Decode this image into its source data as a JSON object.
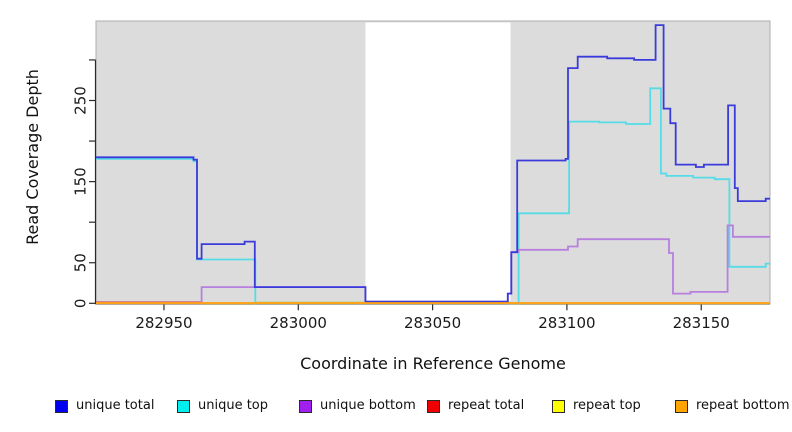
{
  "figure": {
    "x_axis_title": "Coordinate in Reference Genome",
    "y_axis_title": "Read Coverage Depth"
  },
  "chart_data": {
    "type": "line",
    "style": "step-after",
    "title": "",
    "xlabel": "Coordinate in Reference Genome",
    "ylabel": "Read Coverage Depth",
    "xlim": [
      282924.7,
      283175.6
    ],
    "ylim": [
      0,
      348
    ],
    "grid": false,
    "legend_position": "bottom",
    "plot_background_color": "#DCDCDC",
    "axis_color": "#2b2b2b",
    "tick_label_color": "#1a1a1a",
    "gap_region": {
      "x0": 283025,
      "x1": 283079,
      "color": "#FFFFFF"
    },
    "x_ticks": [
      {
        "v": 282950,
        "label": "282950"
      },
      {
        "v": 283000,
        "label": "283000"
      },
      {
        "v": 283050,
        "label": "283050"
      },
      {
        "v": 283100,
        "label": "283100"
      },
      {
        "v": 283150,
        "label": "283150"
      }
    ],
    "y_ticks": [
      {
        "v": 0,
        "label": "0"
      },
      {
        "v": 50,
        "label": "50"
      },
      {
        "v": 100,
        "label": ""
      },
      {
        "v": 150,
        "label": "150"
      },
      {
        "v": 200,
        "label": ""
      },
      {
        "v": 250,
        "label": "250"
      },
      {
        "v": 300,
        "label": ""
      }
    ],
    "draw_order": [
      "repeat_total",
      "unique_top",
      "repeat_top",
      "unique_bottom",
      "unique_total",
      "repeat_bottom"
    ],
    "series": [
      {
        "key": "unique_total",
        "label": "unique total",
        "legend_color": "#0000EE",
        "line_color": "#3B3BDC",
        "width": 1.8,
        "points": [
          [
            282924.7,
            180
          ],
          [
            282961,
            177
          ],
          [
            282962.3,
            55
          ],
          [
            282964,
            73
          ],
          [
            282980,
            76
          ],
          [
            282983.8,
            20
          ],
          [
            283025,
            2
          ],
          [
            283078,
            12
          ],
          [
            283079.3,
            63
          ],
          [
            283081.5,
            176
          ],
          [
            283099.5,
            178
          ],
          [
            283100.4,
            290
          ],
          [
            283104,
            304
          ],
          [
            283115,
            302
          ],
          [
            283125,
            300
          ],
          [
            283133,
            343
          ],
          [
            283136,
            240
          ],
          [
            283138.5,
            222
          ],
          [
            283140.5,
            171
          ],
          [
            283148,
            168
          ],
          [
            283151,
            171
          ],
          [
            283160,
            244
          ],
          [
            283162.5,
            142
          ],
          [
            283163.6,
            126
          ],
          [
            283174,
            129
          ]
        ]
      },
      {
        "key": "unique_top",
        "label": "unique top",
        "legend_color": "#00EEEE",
        "line_color": "#55DCE6",
        "width": 1.8,
        "points": [
          [
            282924.7,
            178
          ],
          [
            282961,
            175
          ],
          [
            282962.3,
            54
          ],
          [
            282984,
            0
          ],
          [
            283082,
            111
          ],
          [
            283100.8,
            224
          ],
          [
            283112,
            223
          ],
          [
            283122,
            221
          ],
          [
            283131,
            265
          ],
          [
            283135,
            160
          ],
          [
            283137,
            157
          ],
          [
            283147,
            155
          ],
          [
            283155,
            153
          ],
          [
            283160.5,
            45
          ],
          [
            283174,
            49
          ]
        ]
      },
      {
        "key": "unique_bottom",
        "label": "unique bottom",
        "legend_color": "#A020F0",
        "line_color": "#B77FDE",
        "width": 1.8,
        "points": [
          [
            282924.7,
            0
          ],
          [
            282964,
            20
          ],
          [
            283025,
            2
          ],
          [
            283078,
            12
          ],
          [
            283079.3,
            63
          ],
          [
            283082,
            66
          ],
          [
            283100.4,
            70
          ],
          [
            283104,
            79
          ],
          [
            283138,
            62
          ],
          [
            283139.5,
            12
          ],
          [
            283146,
            14
          ],
          [
            283159.8,
            96
          ],
          [
            283161.8,
            82
          ]
        ]
      },
      {
        "key": "repeat_total",
        "label": "repeat total",
        "legend_color": "#EE0000",
        "line_color": "#D4647E",
        "width": 1.8,
        "points": [
          [
            282924.7,
            1.5
          ],
          [
            282964,
            0
          ]
        ]
      },
      {
        "key": "repeat_top",
        "label": "repeat top",
        "legend_color": "#FFFF00",
        "line_color": "#A9D16C",
        "width": 1.8,
        "points": [
          [
            282924.7,
            0
          ],
          [
            282984,
            1
          ],
          [
            283079,
            0
          ]
        ]
      },
      {
        "key": "repeat_bottom",
        "label": "repeat bottom",
        "legend_color": "#FFA500",
        "line_color": "#FFA115",
        "width": 2,
        "points": [
          [
            282924.7,
            0.3
          ]
        ]
      }
    ]
  }
}
